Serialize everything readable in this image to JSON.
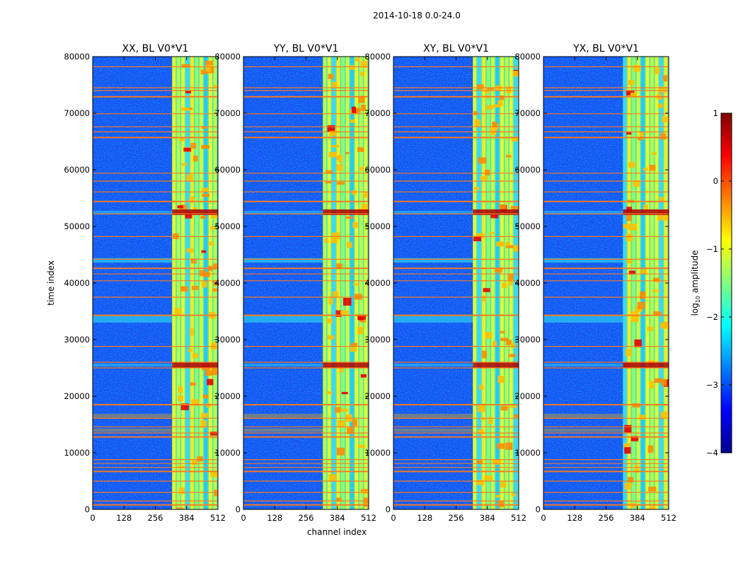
{
  "suptitle": "2014-10-18 0.0-24.0",
  "xlabel": "channel index",
  "ylabel": "time index",
  "colorbar": {
    "label_prefix": "log",
    "label_sub": "10",
    "label_suffix": " amplitude",
    "range": [
      -4,
      1
    ],
    "ticks": [
      "1",
      "0",
      "−1",
      "−2",
      "−3",
      "−4"
    ],
    "tick_values": [
      1,
      0,
      -1,
      -2,
      -3,
      -4
    ],
    "colormap": "jet"
  },
  "chart_data": {
    "type": "heatmap",
    "xlabel": "channel index",
    "ylabel": "time index",
    "xlim": [
      0,
      512
    ],
    "ylim": [
      0,
      80000
    ],
    "xticks": [
      0,
      128,
      256,
      384,
      512
    ],
    "yticks": [
      0,
      10000,
      20000,
      30000,
      40000,
      50000,
      60000,
      70000,
      80000
    ],
    "colorbar_range": [
      -4,
      1
    ],
    "panels": [
      {
        "title": "XX, BL V0*V1",
        "product": "XX"
      },
      {
        "title": "YY, BL V0*V1",
        "product": "YY"
      },
      {
        "title": "XY, BL V0*V1",
        "product": "XY"
      },
      {
        "title": "YX, BL V0*V1",
        "product": "YX"
      }
    ],
    "features": {
      "bright_band_channels": [
        325,
        512
      ],
      "flagged_rows": [
        800,
        1500,
        3000,
        5000,
        6700,
        7400,
        8100,
        8800,
        12800,
        13500,
        14600,
        16100,
        18500,
        25000,
        26000,
        28800,
        34300,
        37500,
        40400,
        41600,
        42600,
        44200,
        48200,
        52200,
        54400,
        56100,
        58000,
        59400,
        65700,
        66700,
        67600,
        69900,
        72900,
        74000,
        74500,
        78200
      ],
      "peak_rows": [
        25500,
        52500
      ]
    }
  }
}
